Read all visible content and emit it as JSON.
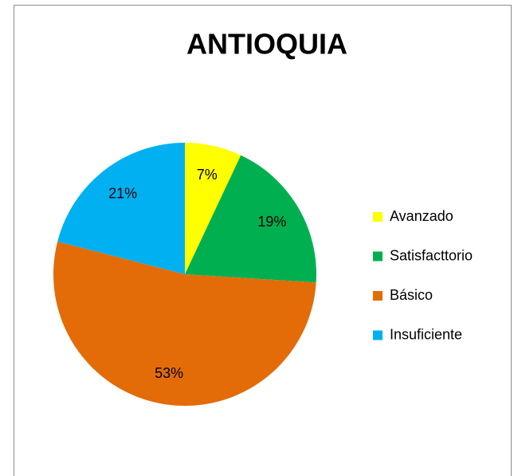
{
  "chart_data": {
    "type": "pie",
    "title": "ANTIOQUIA",
    "categories": [
      "Avanzado",
      "Satisfacttorio",
      "Básico",
      "Insuficiente"
    ],
    "values": [
      7,
      19,
      53,
      21
    ],
    "value_labels": [
      "7%",
      "19%",
      "53%",
      "21%"
    ],
    "colors": [
      "#ffff00",
      "#00b050",
      "#e36c09",
      "#00b0f0"
    ],
    "legend": "right"
  }
}
